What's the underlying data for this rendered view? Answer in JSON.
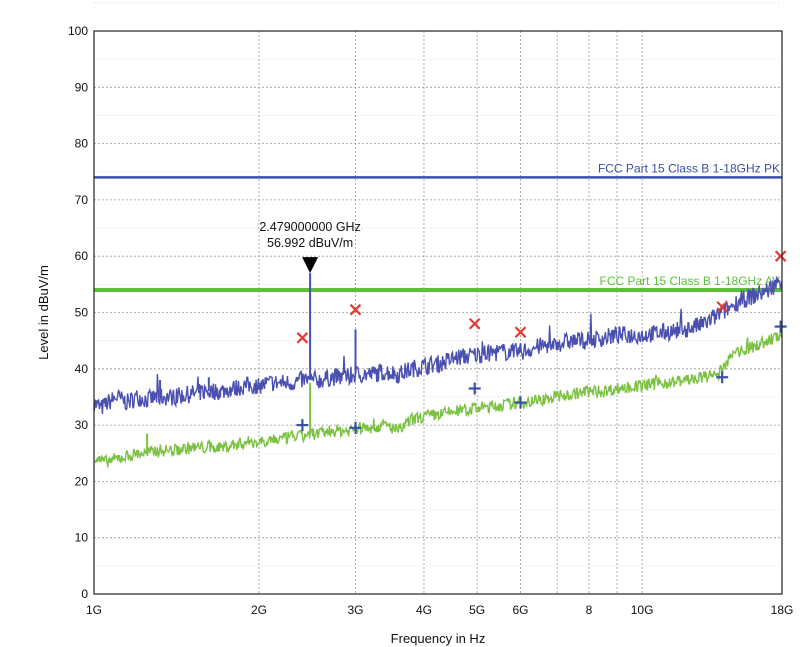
{
  "chart_data": {
    "type": "line",
    "title": "",
    "xlabel": "Frequency in Hz",
    "ylabel": "Level in dBuV/m",
    "x_scale": "log",
    "xlim": [
      1,
      18
    ],
    "ylim": [
      0,
      100
    ],
    "grid": true,
    "y_ticks": [
      0,
      10,
      20,
      30,
      40,
      50,
      60,
      70,
      80,
      90,
      100
    ],
    "y_tick_labels": [
      "0",
      "10",
      "20",
      "30",
      "40",
      "50",
      "60",
      "70",
      "80",
      "90",
      "100"
    ],
    "x_ticks": [
      1,
      2,
      3,
      4,
      5,
      6,
      8,
      10,
      18
    ],
    "x_tick_labels": [
      "1G",
      "2G",
      "3G",
      "4G",
      "5G",
      "6G",
      "8",
      "10G",
      "18G"
    ],
    "x_minor_grid": [
      7,
      9
    ],
    "limits": [
      {
        "label": "FCC Part 15 Class B 1-18GHz PK",
        "value": 74,
        "color": "#3a4fa8"
      },
      {
        "label": "FCC Part 15 Class B 1-18GHz AV",
        "value": 54,
        "color": "#5cbf3a"
      }
    ],
    "series": [
      {
        "color": "#4a50b0",
        "x": [
          1.0,
          1.03,
          1.06,
          1.1,
          1.15,
          1.2,
          1.25,
          1.3,
          1.4,
          1.5,
          1.6,
          1.7,
          1.8,
          1.9,
          2.0,
          2.1,
          2.2,
          2.3,
          2.4,
          2.5,
          2.6,
          2.7,
          2.8,
          2.9,
          3.0,
          3.2,
          3.4,
          3.6,
          3.8,
          4.0,
          4.3,
          4.6,
          5.0,
          5.5,
          6.0,
          6.5,
          7.0,
          7.5,
          8.0,
          8.5,
          9.0,
          10.0,
          11.0,
          12.0,
          13.0,
          14.0,
          14.5,
          15.0,
          16.0,
          17.0,
          18.0
        ],
        "values": [
          34,
          33,
          34,
          35,
          34,
          35,
          34.5,
          35,
          35,
          35.5,
          36,
          36,
          36.5,
          37,
          37,
          37.5,
          37.5,
          37.5,
          38,
          38,
          38,
          38.5,
          38.5,
          38.5,
          39,
          39,
          39.5,
          39,
          40,
          40.5,
          41,
          42,
          42.5,
          43,
          43,
          44,
          44.5,
          45,
          45,
          45.5,
          46,
          46,
          46.5,
          47,
          48,
          50,
          51,
          52,
          53,
          54,
          56
        ],
        "spikes": [
          {
            "x": 1.32,
            "value": 38
          },
          {
            "x": 1.62,
            "value": 38.5
          },
          {
            "x": 2.479,
            "value": 56.992
          },
          {
            "x": 3.0,
            "value": 47
          },
          {
            "x": 4.95,
            "value": 43.5
          },
          {
            "x": 6.0,
            "value": 44.5
          }
        ]
      },
      {
        "color": "#7cc242",
        "x": [
          1.0,
          1.05,
          1.1,
          1.15,
          1.2,
          1.25,
          1.3,
          1.4,
          1.5,
          1.6,
          1.7,
          1.8,
          1.9,
          2.0,
          2.1,
          2.2,
          2.3,
          2.4,
          2.5,
          2.6,
          2.7,
          2.8,
          2.9,
          3.0,
          3.2,
          3.4,
          3.6,
          3.8,
          4.0,
          4.3,
          4.6,
          5.0,
          5.5,
          6.0,
          6.5,
          7.0,
          7.5,
          8.0,
          8.5,
          9.0,
          10.0,
          11.0,
          12.0,
          13.0,
          13.8,
          14.2,
          14.5,
          15.0,
          16.0,
          17.0,
          18.0
        ],
        "values": [
          24,
          23.5,
          24,
          24.5,
          25,
          25,
          25.5,
          25.5,
          26,
          26,
          26,
          26.5,
          27,
          27,
          27.5,
          27.5,
          28,
          28,
          28.5,
          28.5,
          29,
          29,
          29,
          29.5,
          29.5,
          30,
          29,
          31,
          31.5,
          32,
          32.5,
          33,
          33.5,
          34,
          34.5,
          35,
          35.5,
          36,
          36,
          36.5,
          37,
          37.5,
          38,
          38.5,
          39,
          41,
          42,
          43,
          44,
          45,
          46
        ],
        "spikes": [
          {
            "x": 1.25,
            "value": 28.5
          },
          {
            "x": 2.479,
            "value": 37.5
          }
        ]
      }
    ],
    "peak_markers": [
      {
        "x": 2.4,
        "value": 45.5
      },
      {
        "x": 3.0,
        "value": 50.5
      },
      {
        "x": 4.95,
        "value": 48
      },
      {
        "x": 6.0,
        "value": 46.5
      },
      {
        "x": 14.0,
        "value": 51
      },
      {
        "x": 17.9,
        "value": 60
      }
    ],
    "avg_markers": [
      {
        "x": 2.4,
        "value": 30
      },
      {
        "x": 3.0,
        "value": 29.5
      },
      {
        "x": 4.95,
        "value": 36.5
      },
      {
        "x": 6.0,
        "value": 34
      },
      {
        "x": 14.0,
        "value": 38.5
      },
      {
        "x": 17.9,
        "value": 47.5
      }
    ],
    "peak_marker_color": "#e53935",
    "avg_marker_color": "#3a4fa8",
    "annotation": {
      "x": 2.479,
      "value": 56.992,
      "line1": "2.479000000 GHz",
      "line2": "56.992 dBuV/m"
    }
  }
}
